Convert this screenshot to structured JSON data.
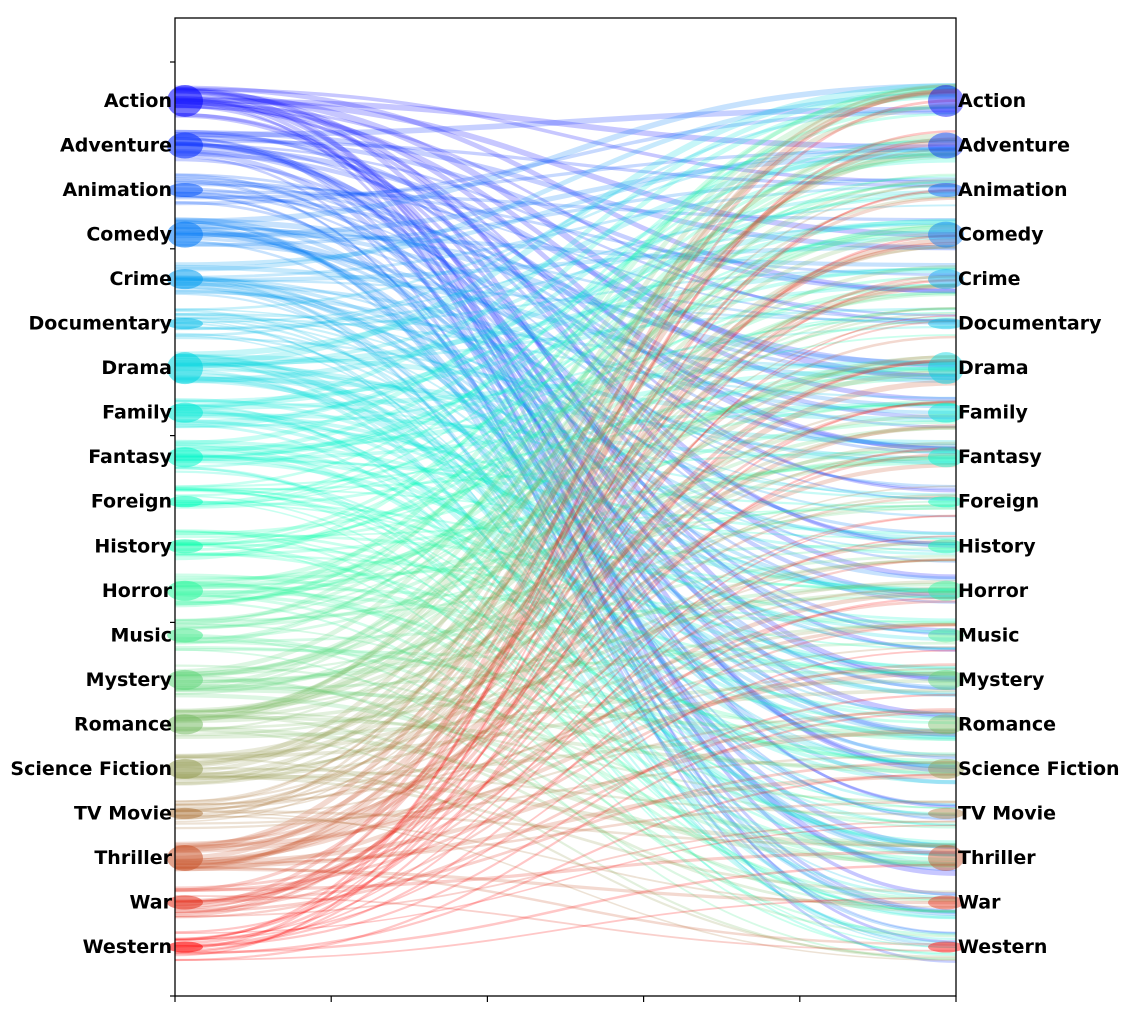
{
  "chart_data": {
    "type": "alluvial",
    "title": "",
    "xlabel": "",
    "ylabel": "",
    "categories": [
      "Action",
      "Adventure",
      "Animation",
      "Comedy",
      "Crime",
      "Documentary",
      "Drama",
      "Family",
      "Fantasy",
      "Foreign",
      "History",
      "Horror",
      "Music",
      "Mystery",
      "Romance",
      "Science Fiction",
      "TV Movie",
      "Thriller",
      "War",
      "Western"
    ],
    "left_labels": [
      "Action",
      "Adventure",
      "Animation",
      "Comedy",
      "Crime",
      "Documentary",
      "Drama",
      "Family",
      "Fantasy",
      "Foreign",
      "History",
      "Horror",
      "Music",
      "Mystery",
      "Romance",
      "Science Fiction",
      "TV Movie",
      "Thriller",
      "War",
      "Western"
    ],
    "right_labels": [
      "Action",
      "Adventure",
      "Animation",
      "Comedy",
      "Crime",
      "Documentary",
      "Drama",
      "Family",
      "Fantasy",
      "Foreign",
      "History",
      "Horror",
      "Music",
      "Mystery",
      "Romance",
      "Science Fiction",
      "TV Movie",
      "Thriller",
      "War",
      "Western"
    ],
    "left_weights": [
      4,
      3,
      1,
      3,
      2,
      0.5,
      4,
      2,
      2,
      0.5,
      1,
      2,
      1,
      2,
      2,
      2,
      0.5,
      3,
      1,
      0.5
    ],
    "right_weights": [
      4,
      3,
      1,
      3,
      2,
      0.5,
      4,
      2,
      2,
      0.5,
      1,
      2,
      1,
      2,
      2,
      2,
      0.5,
      3,
      1,
      0.5
    ],
    "colormap": "rainbow",
    "grid": false,
    "legend": "none"
  }
}
